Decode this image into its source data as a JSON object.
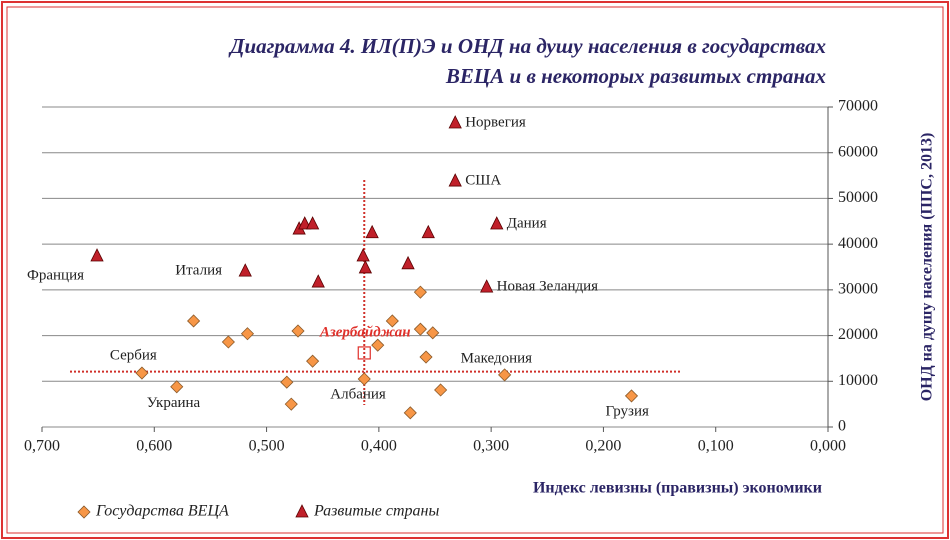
{
  "chart_data": {
    "type": "scatter",
    "title": "Диаграмма 4. ИЛ(П)Э и ОНД на душу населения в государствах",
    "subtitle": "ВЕЦА и в некоторых развитых странах",
    "x_label": "Индекс левизны (правизны) экономики",
    "y_label": "ОНД на душу населения (ППС, 2013)",
    "xlim": [
      0.7,
      0
    ],
    "xticks": [
      {
        "value": 0.7,
        "label": "0,700"
      },
      {
        "value": 0.6,
        "label": "0,600"
      },
      {
        "value": 0.5,
        "label": "0,500"
      },
      {
        "value": 0.4,
        "label": "0,400"
      },
      {
        "value": 0.3,
        "label": "0,300"
      },
      {
        "value": 0.2,
        "label": "0,200"
      },
      {
        "value": 0.1,
        "label": "0,100"
      },
      {
        "value": 0,
        "label": "0,000"
      }
    ],
    "ylim": [
      0,
      70000
    ],
    "yticks": [
      0,
      10000,
      20000,
      30000,
      40000,
      50000,
      60000,
      70000
    ],
    "grid": true,
    "legend": "bottom-left",
    "series": [
      {
        "name": "Государства ВЕЦА",
        "marker": "diamond",
        "color": "#f79646",
        "x": [
          0.565,
          0.534,
          0.517,
          0.472,
          0.459,
          0.482,
          0.478,
          0.611,
          0.58,
          0.413,
          0.401,
          0.388,
          0.363,
          0.352,
          0.358,
          0.363,
          0.345,
          0.372,
          0.288,
          0.175
        ],
        "values": [
          23200,
          18600,
          20400,
          21000,
          14400,
          9800,
          5000,
          11800,
          8800,
          10500,
          17900,
          23200,
          21400,
          20600,
          15300,
          29500,
          8100,
          3100,
          11400,
          6800
        ],
        "labels": [
          null,
          null,
          null,
          null,
          null,
          null,
          null,
          "Сербия",
          "Украина",
          "Албания",
          null,
          null,
          null,
          null,
          null,
          null,
          null,
          null,
          "Македония",
          "Грузия"
        ]
      },
      {
        "name": "Развитые страны",
        "marker": "triangle",
        "color": "#c0202a",
        "x": [
          0.332,
          0.332,
          0.295,
          0.651,
          0.519,
          0.304,
          0.471,
          0.466,
          0.459,
          0.406,
          0.356,
          0.414,
          0.412,
          0.374,
          0.454
        ],
        "values": [
          66500,
          53800,
          44400,
          37400,
          34100,
          30600,
          43300,
          44400,
          44400,
          42500,
          42500,
          37400,
          34800,
          35700,
          31700
        ],
        "labels": [
          "Норвегия",
          "США",
          "Дания",
          "Франция",
          "Италия",
          "Новая Зеландия",
          null,
          null,
          null,
          null,
          null,
          null,
          null,
          null,
          null
        ]
      }
    ],
    "annotation": {
      "text": "Азербайджан",
      "x": 0.413,
      "y": 16200,
      "color": "#e0302a"
    },
    "reference_lines": {
      "vline": 0.413,
      "hline": 12100,
      "color": "#d0302a"
    }
  }
}
